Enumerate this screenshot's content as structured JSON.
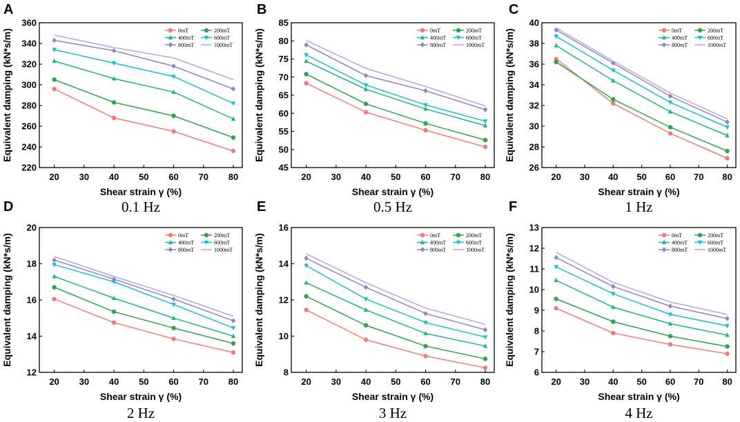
{
  "chart_data": [
    {
      "type": "line",
      "panel": "A",
      "title": "0.1 Hz",
      "xlabel": "Shear strain γ (%)",
      "ylabel": "Equivalent damping (kN*s/m)",
      "xlim": [
        15,
        83
      ],
      "xticks": [
        20,
        30,
        40,
        50,
        60,
        70,
        80
      ],
      "ylim": [
        220,
        360
      ],
      "yticks": [
        220,
        240,
        260,
        280,
        300,
        320,
        340,
        360
      ],
      "x": [
        20,
        40,
        60,
        80
      ],
      "series": [
        {
          "name": "0mT",
          "color": "#f07a76",
          "marker": "circle",
          "values": [
            296,
            268,
            255,
            236
          ]
        },
        {
          "name": "200mT",
          "color": "#2ea348",
          "marker": "circle",
          "values": [
            305,
            283,
            270,
            249
          ]
        },
        {
          "name": "400mT",
          "color": "#1fb28c",
          "marker": "triangle-up",
          "values": [
            323,
            306,
            293,
            267
          ]
        },
        {
          "name": "600mT",
          "color": "#17bcd6",
          "marker": "triangle-down",
          "values": [
            334,
            321,
            308,
            282
          ]
        },
        {
          "name": "800mT",
          "color": "#8f82bd",
          "marker": "diamond",
          "values": [
            343,
            333,
            318,
            296
          ]
        },
        {
          "name": "1000mT",
          "color": "#b2a6dd",
          "marker": "none",
          "values": [
            348,
            336,
            326,
            305
          ]
        }
      ]
    },
    {
      "type": "line",
      "panel": "B",
      "title": "0.5 Hz",
      "xlabel": "Shear strain γ (%)",
      "ylabel": "Equivalent damping (kN*s/m)",
      "xlim": [
        15,
        83
      ],
      "xticks": [
        20,
        30,
        40,
        50,
        60,
        70,
        80
      ],
      "ylim": [
        45,
        85
      ],
      "yticks": [
        45,
        50,
        55,
        60,
        65,
        70,
        75,
        80,
        85
      ],
      "x": [
        20,
        40,
        60,
        80
      ],
      "series": [
        {
          "name": "0mT",
          "color": "#f07a76",
          "marker": "circle",
          "values": [
            68.3,
            60.3,
            55.3,
            50.7
          ]
        },
        {
          "name": "200mT",
          "color": "#2ea348",
          "marker": "circle",
          "values": [
            70.8,
            62.6,
            57.2,
            52.6
          ]
        },
        {
          "name": "400mT",
          "color": "#1fb28c",
          "marker": "triangle-up",
          "values": [
            74.4,
            66.6,
            61.2,
            56.6
          ]
        },
        {
          "name": "600mT",
          "color": "#17bcd6",
          "marker": "triangle-down",
          "values": [
            76.1,
            67.8,
            62.3,
            57.8
          ]
        },
        {
          "name": "800mT",
          "color": "#8f82bd",
          "marker": "diamond",
          "values": [
            78.9,
            70.4,
            66.2,
            61.0
          ]
        },
        {
          "name": "1000mT",
          "color": "#b2a6dd",
          "marker": "none",
          "values": [
            80.1,
            72.4,
            67.4,
            62.0
          ]
        }
      ]
    },
    {
      "type": "line",
      "panel": "C",
      "title": "1 Hz",
      "xlabel": "Shear strain γ (%)",
      "ylabel": "Equivalent damping (kN*s/m)",
      "xlim": [
        15,
        83
      ],
      "xticks": [
        20,
        30,
        40,
        50,
        60,
        70,
        80
      ],
      "ylim": [
        26,
        40
      ],
      "yticks": [
        26,
        28,
        30,
        32,
        34,
        36,
        38,
        40
      ],
      "x": [
        20,
        40,
        60,
        80
      ],
      "series": [
        {
          "name": "0mT",
          "color": "#f07a76",
          "marker": "circle",
          "values": [
            36.5,
            32.2,
            29.3,
            26.9
          ]
        },
        {
          "name": "200mT",
          "color": "#2ea348",
          "marker": "circle",
          "values": [
            36.2,
            32.6,
            29.9,
            27.6
          ]
        },
        {
          "name": "400mT",
          "color": "#1fb28c",
          "marker": "triangle-up",
          "values": [
            37.8,
            34.4,
            31.4,
            29.1
          ]
        },
        {
          "name": "600mT",
          "color": "#17bcd6",
          "marker": "triangle-down",
          "values": [
            38.7,
            35.4,
            32.3,
            29.9
          ]
        },
        {
          "name": "800mT",
          "color": "#8f82bd",
          "marker": "diamond",
          "values": [
            39.3,
            36.1,
            32.9,
            30.4
          ]
        },
        {
          "name": "1000mT",
          "color": "#b2a6dd",
          "marker": "none",
          "values": [
            39.5,
            36.3,
            33.2,
            30.7
          ]
        }
      ]
    },
    {
      "type": "line",
      "panel": "D",
      "title": "2 Hz",
      "xlabel": "Shear strain γ (%)",
      "ylabel": "Equivalent damping (kN*s/m)",
      "xlim": [
        15,
        83
      ],
      "xticks": [
        20,
        30,
        40,
        50,
        60,
        70,
        80
      ],
      "ylim": [
        12,
        20
      ],
      "yticks": [
        12,
        14,
        16,
        18,
        20
      ],
      "x": [
        20,
        40,
        60,
        80
      ],
      "series": [
        {
          "name": "0mT",
          "color": "#f07a76",
          "marker": "circle",
          "values": [
            16.05,
            14.75,
            13.85,
            13.1
          ]
        },
        {
          "name": "200mT",
          "color": "#2ea348",
          "marker": "circle",
          "values": [
            16.7,
            15.35,
            14.45,
            13.6
          ]
        },
        {
          "name": "400mT",
          "color": "#1fb28c",
          "marker": "triangle-up",
          "values": [
            17.3,
            16.1,
            15.0,
            14.0
          ]
        },
        {
          "name": "600mT",
          "color": "#17bcd6",
          "marker": "triangle-down",
          "values": [
            17.95,
            17.0,
            15.75,
            14.45
          ]
        },
        {
          "name": "800mT",
          "color": "#8f82bd",
          "marker": "diamond",
          "values": [
            18.2,
            17.15,
            16.05,
            14.85
          ]
        },
        {
          "name": "1000mT",
          "color": "#b2a6dd",
          "marker": "none",
          "values": [
            18.4,
            17.3,
            16.25,
            15.1
          ]
        }
      ]
    },
    {
      "type": "line",
      "panel": "E",
      "title": "3 Hz",
      "xlabel": "Shear strain γ (%)",
      "ylabel": "Equivalent damping (kN*s/m)",
      "xlim": [
        15,
        83
      ],
      "xticks": [
        20,
        30,
        40,
        50,
        60,
        70,
        80
      ],
      "ylim": [
        8,
        16
      ],
      "yticks": [
        8,
        10,
        12,
        14,
        16
      ],
      "x": [
        20,
        40,
        60,
        80
      ],
      "series": [
        {
          "name": "0mT",
          "color": "#f07a76",
          "marker": "circle",
          "values": [
            11.45,
            9.8,
            8.9,
            8.25
          ]
        },
        {
          "name": "200mT",
          "color": "#2ea348",
          "marker": "circle",
          "values": [
            12.2,
            10.6,
            9.45,
            8.75
          ]
        },
        {
          "name": "400mT",
          "color": "#1fb28c",
          "marker": "triangle-up",
          "values": [
            12.95,
            11.45,
            10.15,
            9.45
          ]
        },
        {
          "name": "600mT",
          "color": "#17bcd6",
          "marker": "triangle-down",
          "values": [
            13.9,
            12.05,
            10.75,
            9.95
          ]
        },
        {
          "name": "800mT",
          "color": "#8f82bd",
          "marker": "diamond",
          "values": [
            14.3,
            12.7,
            11.25,
            10.35
          ]
        },
        {
          "name": "1000mT",
          "color": "#b2a6dd",
          "marker": "none",
          "values": [
            14.55,
            12.95,
            11.55,
            10.65
          ]
        }
      ]
    },
    {
      "type": "line",
      "panel": "F",
      "title": "4 Hz",
      "xlabel": "Shear strain γ (%)",
      "ylabel": "Equivalent damping (kN*s/m)",
      "xlim": [
        15,
        83
      ],
      "xticks": [
        20,
        30,
        40,
        50,
        60,
        70,
        80
      ],
      "ylim": [
        6,
        13
      ],
      "yticks": [
        6,
        7,
        8,
        9,
        10,
        11,
        12,
        13
      ],
      "x": [
        20,
        40,
        60,
        80
      ],
      "series": [
        {
          "name": "0mT",
          "color": "#f07a76",
          "marker": "circle",
          "values": [
            9.1,
            7.9,
            7.35,
            6.9
          ]
        },
        {
          "name": "200mT",
          "color": "#2ea348",
          "marker": "circle",
          "values": [
            9.55,
            8.45,
            7.75,
            7.25
          ]
        },
        {
          "name": "400mT",
          "color": "#1fb28c",
          "marker": "triangle-up",
          "values": [
            10.45,
            9.15,
            8.35,
            7.8
          ]
        },
        {
          "name": "600mT",
          "color": "#17bcd6",
          "marker": "triangle-down",
          "values": [
            11.1,
            9.8,
            8.8,
            8.25
          ]
        },
        {
          "name": "800mT",
          "color": "#8f82bd",
          "marker": "diamond",
          "values": [
            11.55,
            10.15,
            9.2,
            8.6
          ]
        },
        {
          "name": "1000mT",
          "color": "#b2a6dd",
          "marker": "none",
          "values": [
            11.8,
            10.35,
            9.4,
            8.8
          ]
        }
      ]
    }
  ]
}
